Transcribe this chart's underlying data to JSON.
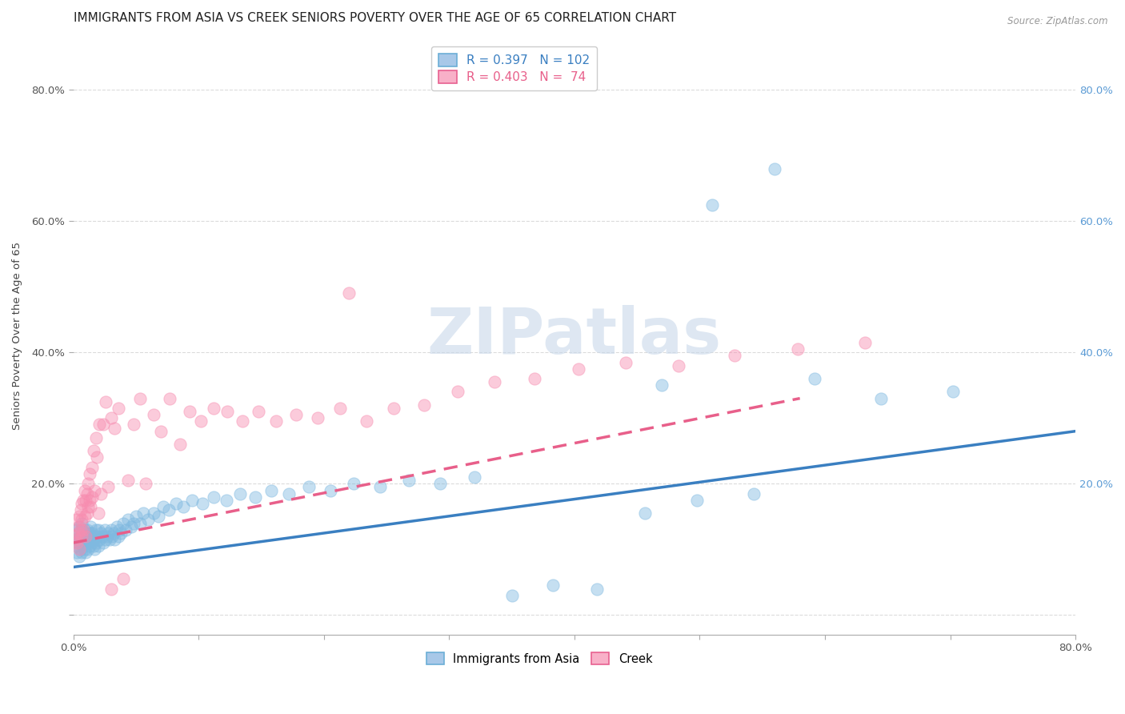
{
  "title": "IMMIGRANTS FROM ASIA VS CREEK SENIORS POVERTY OVER THE AGE OF 65 CORRELATION CHART",
  "source": "Source: ZipAtlas.com",
  "ylabel": "Seniors Poverty Over the Age of 65",
  "xlim": [
    0.0,
    0.8
  ],
  "ylim": [
    -0.03,
    0.88
  ],
  "xticks": [
    0.0,
    0.1,
    0.2,
    0.3,
    0.4,
    0.5,
    0.6,
    0.7,
    0.8
  ],
  "xticklabels": [
    "0.0%",
    "",
    "",
    "",
    "",
    "",
    "",
    "",
    "80.0%"
  ],
  "yticks": [
    0.0,
    0.2,
    0.4,
    0.6,
    0.8
  ],
  "yticklabels_left": [
    "",
    "20.0%",
    "40.0%",
    "60.0%",
    "80.0%"
  ],
  "yticklabels_right": [
    "",
    "20.0%",
    "40.0%",
    "60.0%",
    "80.0%"
  ],
  "blue_scatter_color": "#7fb9e0",
  "pink_scatter_color": "#f78db0",
  "blue_line_color": "#3a7fc1",
  "pink_line_color": "#e85f8a",
  "right_tick_color": "#5b9bd5",
  "background_color": "#ffffff",
  "grid_color": "#d8d8d8",
  "watermark_text": "ZIPatlas",
  "watermark_color": "#c8d8ea",
  "watermark_alpha": 0.6,
  "legend_R1": "0.397",
  "legend_N1": "102",
  "legend_R2": "0.403",
  "legend_N2": "74",
  "legend_label1": "Immigrants from Asia",
  "legend_label2": "Creek",
  "scatter_size": 120,
  "scatter_alpha": 0.45,
  "asia_x": [
    0.001,
    0.002,
    0.003,
    0.003,
    0.004,
    0.004,
    0.005,
    0.005,
    0.005,
    0.006,
    0.006,
    0.006,
    0.007,
    0.007,
    0.007,
    0.008,
    0.008,
    0.008,
    0.009,
    0.009,
    0.01,
    0.01,
    0.01,
    0.011,
    0.011,
    0.012,
    0.012,
    0.012,
    0.013,
    0.013,
    0.014,
    0.014,
    0.015,
    0.015,
    0.016,
    0.016,
    0.017,
    0.017,
    0.018,
    0.018,
    0.019,
    0.02,
    0.02,
    0.021,
    0.022,
    0.023,
    0.024,
    0.025,
    0.026,
    0.027,
    0.028,
    0.029,
    0.03,
    0.031,
    0.032,
    0.033,
    0.035,
    0.036,
    0.037,
    0.038,
    0.04,
    0.042,
    0.044,
    0.046,
    0.048,
    0.05,
    0.053,
    0.056,
    0.06,
    0.064,
    0.068,
    0.072,
    0.076,
    0.082,
    0.088,
    0.095,
    0.103,
    0.112,
    0.122,
    0.133,
    0.145,
    0.158,
    0.172,
    0.188,
    0.205,
    0.224,
    0.245,
    0.268,
    0.293,
    0.32,
    0.35,
    0.383,
    0.418,
    0.456,
    0.498,
    0.543,
    0.592,
    0.645,
    0.702,
    0.47,
    0.51,
    0.56
  ],
  "asia_y": [
    0.115,
    0.105,
    0.095,
    0.13,
    0.11,
    0.125,
    0.115,
    0.09,
    0.135,
    0.1,
    0.12,
    0.13,
    0.11,
    0.095,
    0.14,
    0.12,
    0.105,
    0.115,
    0.1,
    0.13,
    0.115,
    0.095,
    0.125,
    0.11,
    0.13,
    0.1,
    0.12,
    0.115,
    0.105,
    0.125,
    0.115,
    0.135,
    0.11,
    0.125,
    0.105,
    0.12,
    0.115,
    0.1,
    0.13,
    0.11,
    0.12,
    0.105,
    0.13,
    0.115,
    0.125,
    0.12,
    0.11,
    0.13,
    0.115,
    0.12,
    0.125,
    0.115,
    0.13,
    0.12,
    0.125,
    0.115,
    0.135,
    0.12,
    0.13,
    0.125,
    0.14,
    0.13,
    0.145,
    0.135,
    0.14,
    0.15,
    0.14,
    0.155,
    0.145,
    0.155,
    0.15,
    0.165,
    0.16,
    0.17,
    0.165,
    0.175,
    0.17,
    0.18,
    0.175,
    0.185,
    0.18,
    0.19,
    0.185,
    0.195,
    0.19,
    0.2,
    0.195,
    0.205,
    0.2,
    0.21,
    0.03,
    0.045,
    0.04,
    0.155,
    0.175,
    0.185,
    0.36,
    0.33,
    0.34,
    0.35,
    0.625,
    0.68
  ],
  "creek_x": [
    0.001,
    0.002,
    0.003,
    0.003,
    0.004,
    0.004,
    0.005,
    0.005,
    0.006,
    0.006,
    0.007,
    0.007,
    0.007,
    0.008,
    0.008,
    0.009,
    0.009,
    0.01,
    0.01,
    0.011,
    0.011,
    0.012,
    0.012,
    0.013,
    0.013,
    0.014,
    0.015,
    0.015,
    0.016,
    0.017,
    0.018,
    0.019,
    0.02,
    0.021,
    0.022,
    0.024,
    0.026,
    0.028,
    0.03,
    0.033,
    0.036,
    0.04,
    0.044,
    0.048,
    0.053,
    0.058,
    0.064,
    0.07,
    0.077,
    0.085,
    0.093,
    0.102,
    0.112,
    0.123,
    0.135,
    0.148,
    0.162,
    0.178,
    0.195,
    0.213,
    0.234,
    0.256,
    0.28,
    0.307,
    0.336,
    0.368,
    0.403,
    0.441,
    0.483,
    0.528,
    0.578,
    0.632,
    0.22,
    0.03
  ],
  "creek_y": [
    0.12,
    0.115,
    0.11,
    0.145,
    0.125,
    0.135,
    0.15,
    0.1,
    0.16,
    0.13,
    0.17,
    0.12,
    0.145,
    0.175,
    0.13,
    0.19,
    0.15,
    0.175,
    0.12,
    0.185,
    0.155,
    0.2,
    0.165,
    0.175,
    0.215,
    0.165,
    0.225,
    0.18,
    0.25,
    0.19,
    0.27,
    0.24,
    0.155,
    0.29,
    0.185,
    0.29,
    0.325,
    0.195,
    0.3,
    0.285,
    0.315,
    0.055,
    0.205,
    0.29,
    0.33,
    0.2,
    0.305,
    0.28,
    0.33,
    0.26,
    0.31,
    0.295,
    0.315,
    0.31,
    0.295,
    0.31,
    0.295,
    0.305,
    0.3,
    0.315,
    0.295,
    0.315,
    0.32,
    0.34,
    0.355,
    0.36,
    0.375,
    0.385,
    0.38,
    0.395,
    0.405,
    0.415,
    0.49,
    0.04
  ],
  "asia_trend_x": [
    0.0,
    0.8
  ],
  "asia_trend_y": [
    0.073,
    0.28
  ],
  "creek_trend_x": [
    0.0,
    0.58
  ],
  "creek_trend_y": [
    0.11,
    0.33
  ],
  "title_fontsize": 11,
  "tick_fontsize": 9.5,
  "axis_label_fontsize": 9.5
}
